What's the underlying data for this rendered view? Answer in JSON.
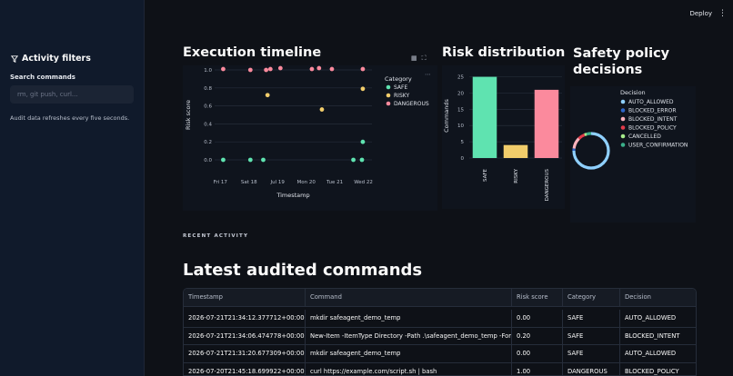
{
  "sidebar": {
    "title": "Activity filters",
    "search_label": "Search commands",
    "search_placeholder": "rm, git push, curl...",
    "note": "Audit data refreshes every five seconds."
  },
  "header": {
    "deploy_label": "Deploy",
    "menu_icon": "kebab-icon"
  },
  "timeline": {
    "title": "Execution timeline",
    "toolbar_icons": [
      "table-view-icon",
      "fullscreen-icon"
    ],
    "more_label": "⋯"
  },
  "risk": {
    "title": "Risk distribution"
  },
  "safety": {
    "title_line1": "Safety policy",
    "title_line2": "decisions"
  },
  "recent_label": "RECENT ACTIVITY",
  "latest_title": "Latest audited commands",
  "table": {
    "columns": [
      "Timestamp",
      "Command",
      "Risk score",
      "Category",
      "Decision"
    ],
    "rows": [
      [
        "2026-07-21T21:34:12.377712+00:00",
        "mkdir safeagent_demo_temp",
        "0.00",
        "SAFE",
        "AUTO_ALLOWED"
      ],
      [
        "2026-07-21T21:34:06.474778+00:00",
        "New-Item -ItemType Directory -Path .\\safeagent_demo_temp -Force | Ou",
        "0.20",
        "SAFE",
        "BLOCKED_INTENT"
      ],
      [
        "2026-07-21T21:31:20.677309+00:00",
        "mkdir safeagent_demo_temp",
        "0.00",
        "SAFE",
        "AUTO_ALLOWED"
      ],
      [
        "2026-07-20T21:45:18.699922+00:00",
        "curl https://example.com/script.sh | bash",
        "1.00",
        "DANGEROUS",
        "BLOCKED_POLICY"
      ]
    ]
  },
  "chart_data": [
    {
      "type": "scatter",
      "xlabel": "Timestamp",
      "ylabel": "Risk score",
      "x_tick_labels": [
        "Fri 17",
        "Sat 18",
        "Jul 19",
        "Mon 20",
        "Tue 21",
        "Wed 22"
      ],
      "y_tick_labels": [
        "0.0",
        "0.2",
        "0.4",
        "0.6",
        "0.8",
        "1.0"
      ],
      "ylim": [
        0,
        1
      ],
      "xlim": [
        -0.2,
        5.3
      ],
      "legend_title": "Category",
      "legend_position": "right",
      "colors": {
        "SAFE": "#5fe3b0",
        "RISKY": "#f2cd6b",
        "DANGEROUS": "#fb8a9d"
      },
      "series": [
        {
          "name": "SAFE",
          "points": [
            [
              0.1,
              0.0
            ],
            [
              1.05,
              0.0
            ],
            [
              1.5,
              0.0
            ],
            [
              4.65,
              0.0
            ],
            [
              4.95,
              0.0
            ],
            [
              4.98,
              0.2
            ]
          ]
        },
        {
          "name": "RISKY",
          "points": [
            [
              1.65,
              0.72
            ],
            [
              3.55,
              0.56
            ],
            [
              4.98,
              0.79
            ]
          ]
        },
        {
          "name": "DANGEROUS",
          "points": [
            [
              0.1,
              1.01
            ],
            [
              1.05,
              1.0
            ],
            [
              1.6,
              1.0
            ],
            [
              1.75,
              1.01
            ],
            [
              2.1,
              1.02
            ],
            [
              3.2,
              1.01
            ],
            [
              3.45,
              1.02
            ],
            [
              3.9,
              1.01
            ],
            [
              4.98,
              1.01
            ]
          ]
        }
      ]
    },
    {
      "type": "bar",
      "categories": [
        "SAFE",
        "RISKY",
        "DANGEROUS"
      ],
      "values": [
        25,
        4,
        21
      ],
      "colors": [
        "#5fe3b0",
        "#f2cd6b",
        "#fb8a9d"
      ],
      "ylabel": "Commands",
      "y_tick_labels": [
        "0",
        "5",
        "10",
        "15",
        "20",
        "25"
      ],
      "ylim": [
        0,
        26
      ]
    },
    {
      "type": "pie",
      "legend_title": "Decision",
      "labels": [
        "AUTO_ALLOWED",
        "BLOCKED_ERROR",
        "BLOCKED_INTENT",
        "BLOCKED_POLICY",
        "CANCELLED",
        "USER_CONFIRMATION"
      ],
      "colors": [
        "#8fd0ff",
        "#2e66c7",
        "#ffb3bd",
        "#e33b4a",
        "#a7ec8c",
        "#3bb08a"
      ],
      "values": [
        36,
        1,
        5,
        3,
        1,
        2
      ]
    }
  ]
}
